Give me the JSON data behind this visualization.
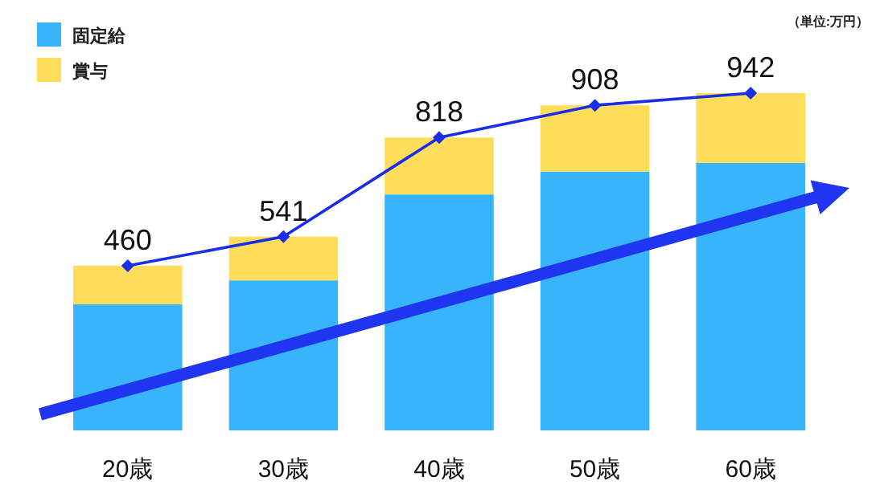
{
  "chart_data": {
    "type": "bar",
    "stacked": true,
    "categories": [
      "20歳",
      "30歳",
      "40歳",
      "50歳",
      "60歳"
    ],
    "series": [
      {
        "name": "固定給",
        "color": "#38b4fc",
        "values": [
          352,
          419,
          659,
          723,
          747
        ]
      },
      {
        "name": "賞与",
        "color": "#fedd5a",
        "values": [
          108,
          122,
          159,
          185,
          195
        ]
      },
      {
        "type": "line",
        "color": "#1a2ee8",
        "marker": "diamond",
        "values": [
          460,
          541,
          818,
          908,
          942
        ],
        "value_labels": [
          "460",
          "541",
          "818",
          "908",
          "942"
        ]
      }
    ],
    "legend": "top left",
    "tick_labels": "x",
    "annotations": [
      "（単位:万円）"
    ]
  }
}
